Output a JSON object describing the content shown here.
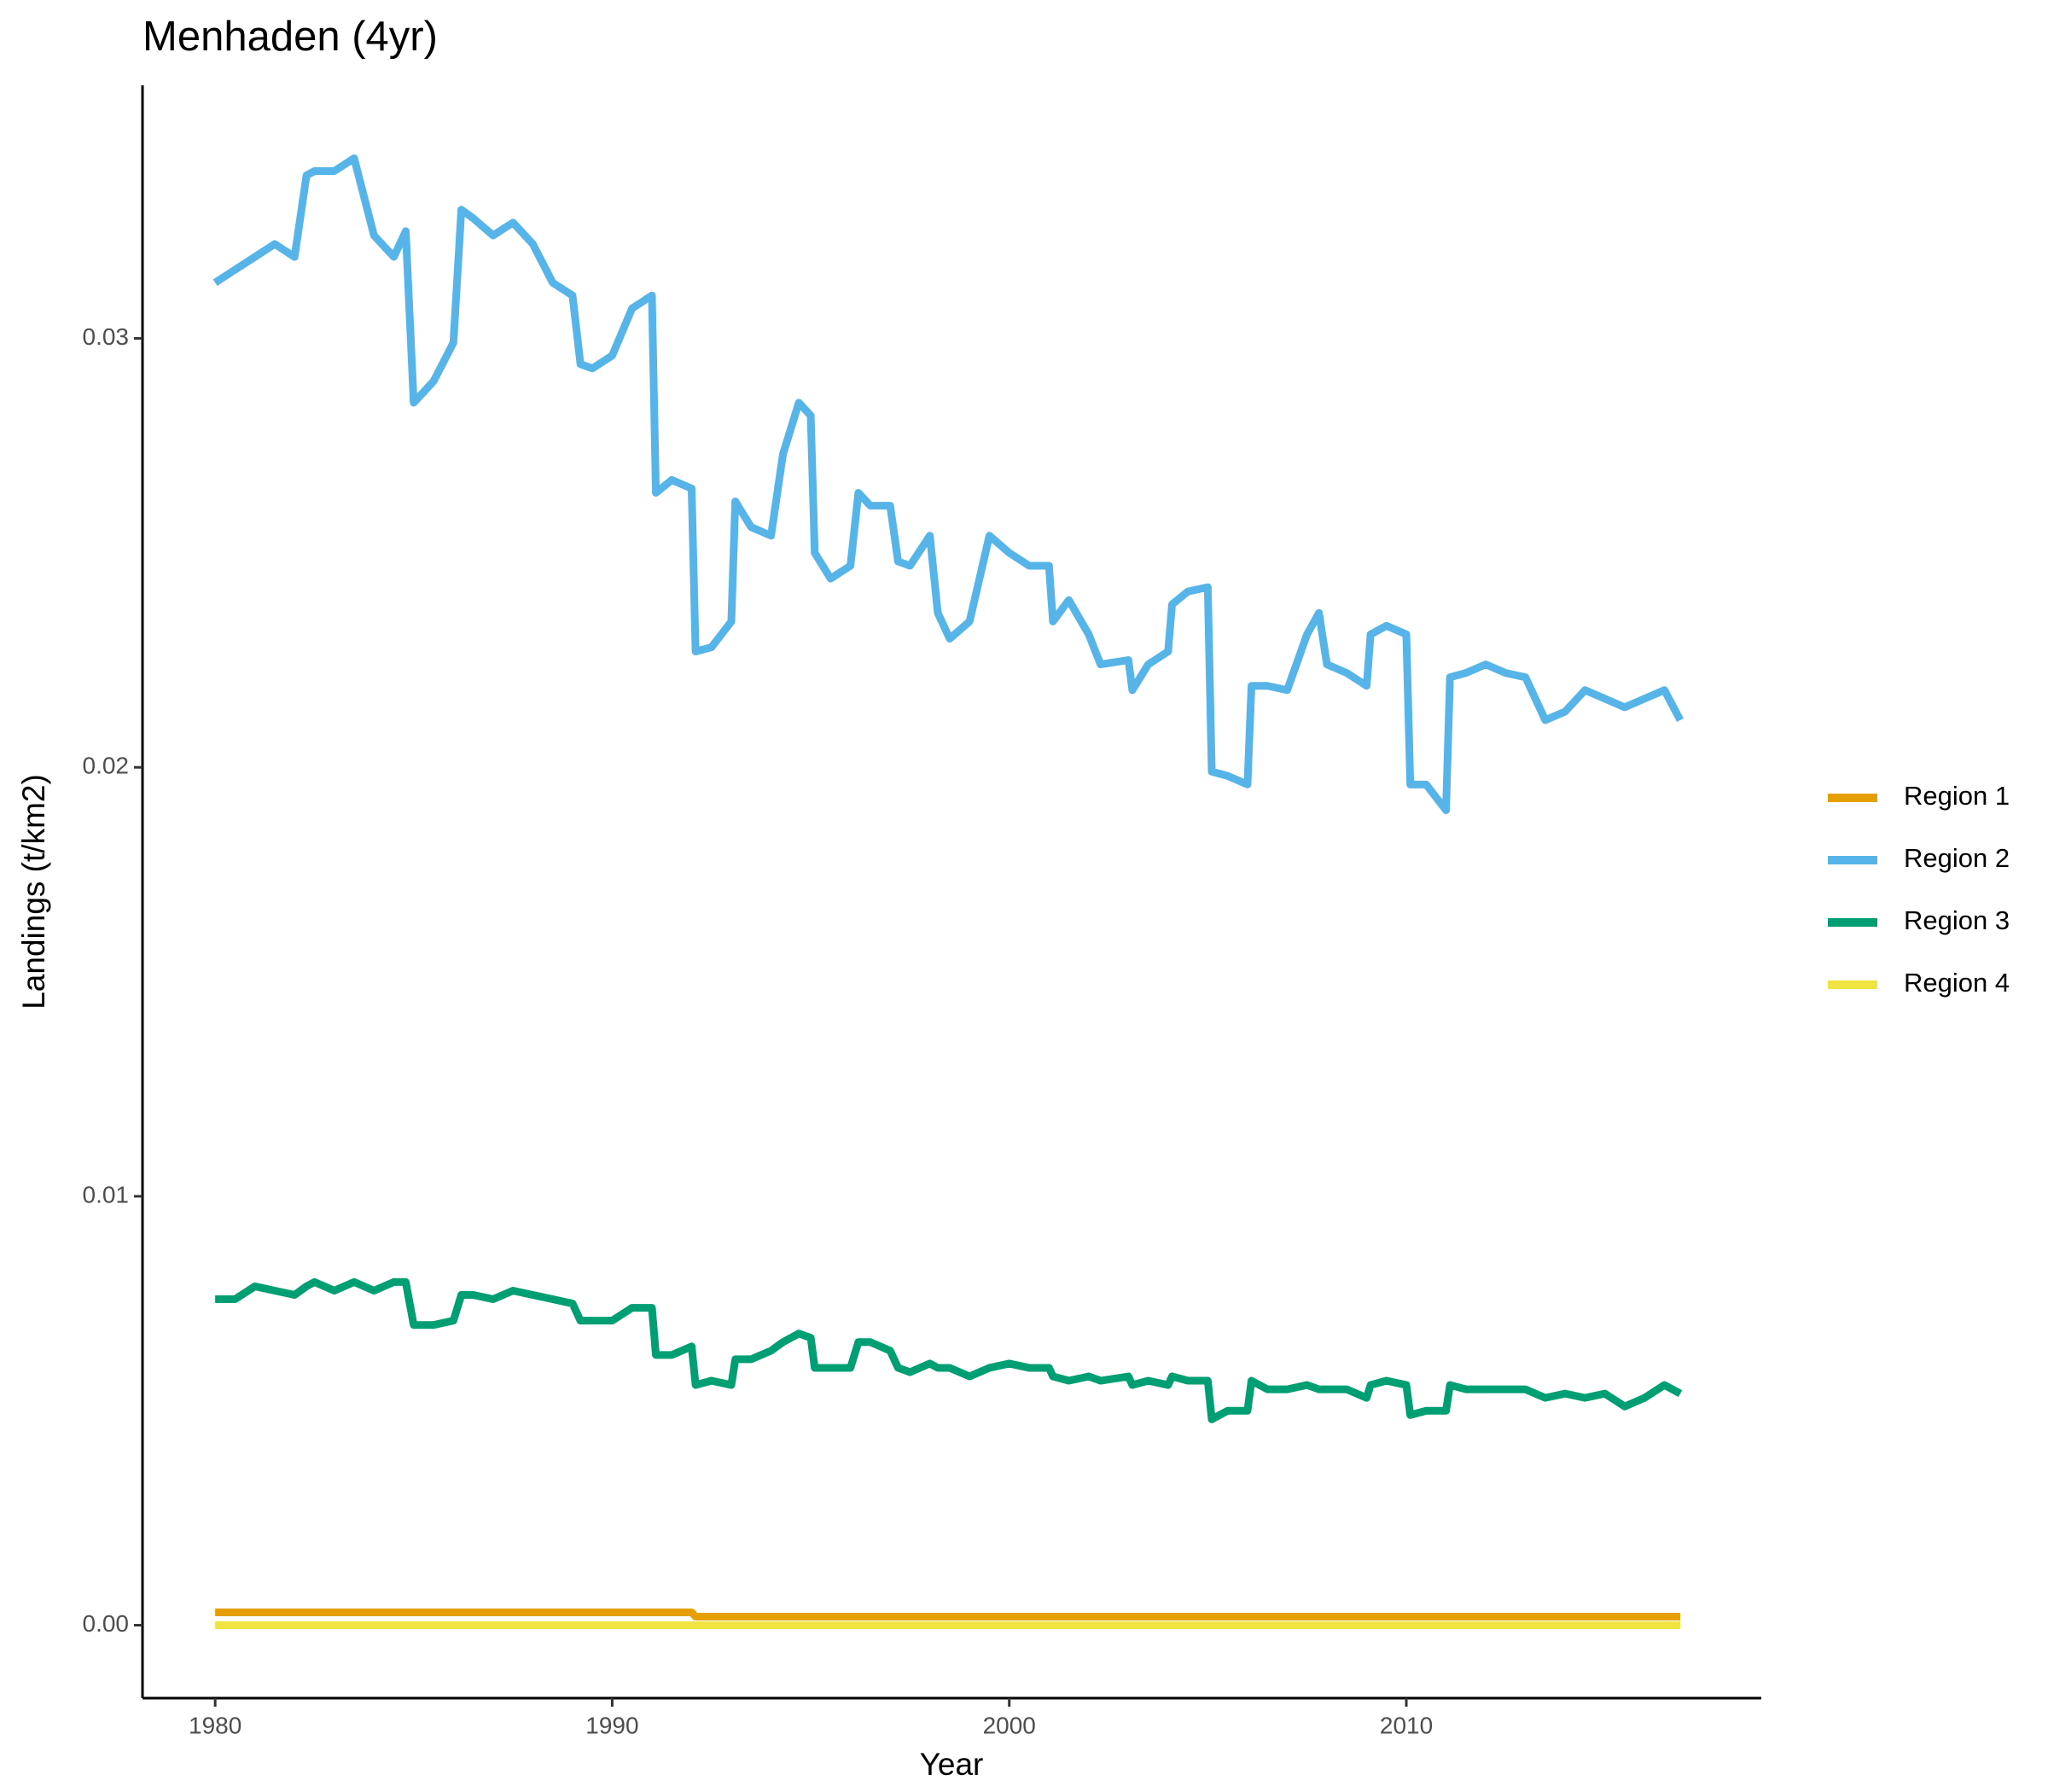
{
  "chart_data": {
    "type": "line",
    "title": "Menhaden (4yr)",
    "x_label": "Year",
    "y_label": "Landings (t/km2)",
    "xlim": [
      1978.17,
      2018.94
    ],
    "ylim": [
      -0.0017,
      0.0359
    ],
    "xticks": [
      1980,
      1990,
      2000,
      2010
    ],
    "yticks": [
      {
        "value": 0,
        "label": "0.00"
      },
      {
        "value": 0.01,
        "label": "0.01"
      },
      {
        "value": 0.02,
        "label": "0.02"
      },
      {
        "value": 0.03,
        "label": "0.03"
      }
    ],
    "grid": false,
    "legend": "right",
    "x": [
      1980.0,
      1980.5,
      1981,
      1981.5,
      1982,
      1982.3,
      1982.5,
      1983,
      1983.5,
      1984,
      1984.5,
      1984.8,
      1985.0,
      1985.5,
      1986.0,
      1986.2,
      1986.5,
      1987,
      1987.5,
      1988,
      1988.5,
      1989,
      1989.2,
      1989.5,
      1990,
      1990.5,
      1991.0,
      1991.1,
      1991.5,
      1992.0,
      1992.1,
      1992.5,
      1993.0,
      1993.1,
      1993.5,
      1994,
      1994.3,
      1994.7,
      1995.0,
      1995.1,
      1995.5,
      1996,
      1996.2,
      1996.5,
      1997,
      1997.2,
      1997.5,
      1998,
      1998.2,
      1998.5,
      1999,
      1999.5,
      2000,
      2000.5,
      2001,
      2001.1,
      2001.5,
      2002,
      2002.3,
      2003,
      2003.1,
      2003.5,
      2004,
      2004.1,
      2004.5,
      2005.0,
      2005.1,
      2005.5,
      2006,
      2006.1,
      2006.5,
      2007,
      2007.5,
      2007.8,
      2008,
      2008.5,
      2009,
      2009.1,
      2009.5,
      2010,
      2010.1,
      2010.5,
      2011,
      2011.1,
      2011.5,
      2012,
      2012.5,
      2013,
      2013.5,
      2014,
      2014.5,
      2015,
      2015.5,
      2016,
      2016.5,
      2016.9
    ],
    "series": [
      {
        "name": "Region 1",
        "color": "#E69F00",
        "values": [
          0.0003,
          0.0003,
          0.0003,
          0.0003,
          0.0003,
          0.0003,
          0.0003,
          0.0003,
          0.0003,
          0.0003,
          0.0003,
          0.0003,
          0.0003,
          0.0003,
          0.0003,
          0.0003,
          0.0003,
          0.0003,
          0.0003,
          0.0003,
          0.0003,
          0.0003,
          0.0003,
          0.0003,
          0.0003,
          0.0003,
          0.0003,
          0.0003,
          0.0003,
          0.0003,
          0.0002,
          0.0002,
          0.0002,
          0.0002,
          0.0002,
          0.0002,
          0.0002,
          0.0002,
          0.0002,
          0.0002,
          0.0002,
          0.0002,
          0.0002,
          0.0002,
          0.0002,
          0.0002,
          0.0002,
          0.0002,
          0.0002,
          0.0002,
          0.0002,
          0.0002,
          0.0002,
          0.0002,
          0.0002,
          0.0002,
          0.0002,
          0.0002,
          0.0002,
          0.0002,
          0.0002,
          0.0002,
          0.0002,
          0.0002,
          0.0002,
          0.0002,
          0.0002,
          0.0002,
          0.0002,
          0.0002,
          0.0002,
          0.0002,
          0.0002,
          0.0002,
          0.0002,
          0.0002,
          0.0002,
          0.0002,
          0.0002,
          0.0002,
          0.0002,
          0.0002,
          0.0002,
          0.0002,
          0.0002,
          0.0002,
          0.0002,
          0.0002,
          0.0002,
          0.0002,
          0.0002,
          0.0002,
          0.0002,
          0.0002,
          0.0002,
          0.0002
        ]
      },
      {
        "name": "Region 2",
        "color": "#56B4E9",
        "values": [
          0.0313,
          0.0316,
          0.0319,
          0.0322,
          0.0319,
          0.0338,
          0.0339,
          0.0339,
          0.0342,
          0.0324,
          0.0319,
          0.0325,
          0.0285,
          0.029,
          0.0299,
          0.033,
          0.0328,
          0.0324,
          0.0327,
          0.0322,
          0.0313,
          0.031,
          0.0294,
          0.0293,
          0.0296,
          0.0307,
          0.031,
          0.0264,
          0.0267,
          0.0265,
          0.0227,
          0.0228,
          0.0234,
          0.0262,
          0.0256,
          0.0254,
          0.0273,
          0.0285,
          0.0282,
          0.025,
          0.0244,
          0.0247,
          0.0264,
          0.0261,
          0.0261,
          0.0248,
          0.0247,
          0.0254,
          0.0236,
          0.023,
          0.0234,
          0.0254,
          0.025,
          0.0247,
          0.0247,
          0.0234,
          0.0239,
          0.0231,
          0.0224,
          0.0225,
          0.0218,
          0.0224,
          0.0227,
          0.0238,
          0.0241,
          0.0242,
          0.0199,
          0.0198,
          0.0196,
          0.0219,
          0.0219,
          0.0218,
          0.0231,
          0.0236,
          0.0224,
          0.0222,
          0.0219,
          0.0231,
          0.0233,
          0.0231,
          0.0196,
          0.0196,
          0.019,
          0.0221,
          0.0222,
          0.0224,
          0.0222,
          0.0221,
          0.0211,
          0.0213,
          0.0218,
          0.0216,
          0.0214,
          0.0216,
          0.0218,
          0.0211
        ]
      },
      {
        "name": "Region 3",
        "color": "#009E73",
        "values": [
          0.0076,
          0.0076,
          0.0079,
          0.0078,
          0.0077,
          0.0079,
          0.008,
          0.0078,
          0.008,
          0.0078,
          0.008,
          0.008,
          0.007,
          0.007,
          0.0071,
          0.0077,
          0.0077,
          0.0076,
          0.0078,
          0.0077,
          0.0076,
          0.0075,
          0.0071,
          0.0071,
          0.0071,
          0.0074,
          0.0074,
          0.0063,
          0.0063,
          0.0065,
          0.0056,
          0.0057,
          0.0056,
          0.0062,
          0.0062,
          0.0064,
          0.0066,
          0.0068,
          0.0067,
          0.006,
          0.006,
          0.006,
          0.0066,
          0.0066,
          0.0064,
          0.006,
          0.0059,
          0.0061,
          0.006,
          0.006,
          0.0058,
          0.006,
          0.0061,
          0.006,
          0.006,
          0.0058,
          0.0057,
          0.0058,
          0.0057,
          0.0058,
          0.0056,
          0.0057,
          0.0056,
          0.0058,
          0.0057,
          0.0057,
          0.0048,
          0.005,
          0.005,
          0.0057,
          0.0055,
          0.0055,
          0.0056,
          0.0055,
          0.0055,
          0.0055,
          0.0053,
          0.0056,
          0.0057,
          0.0056,
          0.0049,
          0.005,
          0.005,
          0.0056,
          0.0055,
          0.0055,
          0.0055,
          0.0055,
          0.0053,
          0.0054,
          0.0053,
          0.0054,
          0.0051,
          0.0053,
          0.0056,
          0.0054
        ]
      },
      {
        "name": "Region 4",
        "color": "#F0E442",
        "values": [
          0,
          0,
          0,
          0,
          0,
          0,
          0,
          0,
          0,
          0,
          0,
          0,
          0,
          0,
          0,
          0,
          0,
          0,
          0,
          0,
          0,
          0,
          0,
          0,
          0,
          0,
          0,
          0,
          0,
          0,
          0,
          0,
          0,
          0,
          0,
          0,
          0,
          0,
          0,
          0,
          0,
          0,
          0,
          0,
          0,
          0,
          0,
          0,
          0,
          0,
          0,
          0,
          0,
          0,
          0,
          0,
          0,
          0,
          0,
          0,
          0,
          0,
          0,
          0,
          0,
          0,
          0,
          0,
          0,
          0,
          0,
          0,
          0,
          0,
          0,
          0,
          0,
          0,
          0,
          0,
          0,
          0,
          0,
          0,
          0,
          0,
          0,
          0,
          0,
          0,
          0,
          0,
          0,
          0,
          0,
          0
        ]
      }
    ]
  }
}
